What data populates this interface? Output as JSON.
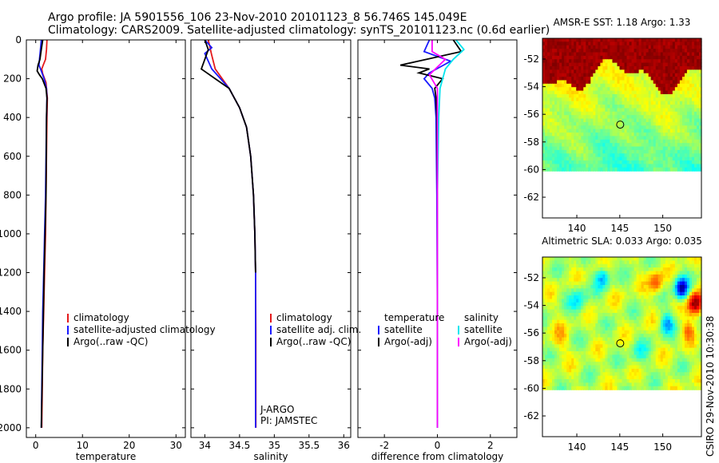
{
  "figure": {
    "title_line1": "Argo profile: JA 5901556_106 23-Nov-2010 20101123_8 56.746S 145.049E",
    "title_line2": "Climatology: CARS2009. Satellite-adjusted climatology: synTS_20101123.nc (0.6d earlier)",
    "timestamp": "CSIRO 29-Nov-2010 10:30:38"
  },
  "colors": {
    "climatology": "#e41a1c",
    "satellite": "#1a1aff",
    "argo": "#000000",
    "sat_salinity": "#00e5ee",
    "argo_salinity": "#ff00ff"
  },
  "chart_data": [
    {
      "id": "temperature",
      "type": "line",
      "xlabel": "temperature",
      "ylabel": "",
      "xlim": [
        -2,
        32
      ],
      "ylim": [
        2050,
        0
      ],
      "xticks": [
        0,
        10,
        20,
        30
      ],
      "yticks": [
        0,
        200,
        400,
        600,
        800,
        1000,
        1200,
        1400,
        1600,
        1800,
        2000
      ],
      "legend": [
        "climatology",
        "satellite-adjusted climatology",
        "Argo(..raw -QC)"
      ],
      "series": [
        {
          "name": "climatology",
          "color": "climatology",
          "x": [
            2.4,
            2.3,
            2.1,
            1.6,
            1.3,
            1.5,
            2.2,
            2.5,
            2.4,
            2.3,
            2.2,
            2.1,
            1.9,
            1.7,
            1.5,
            1.3
          ],
          "y": [
            0,
            50,
            100,
            130,
            150,
            175,
            220,
            300,
            400,
            600,
            800,
            1000,
            1200,
            1400,
            1600,
            2000
          ]
        },
        {
          "name": "satellite-adjusted climatology",
          "color": "satellite",
          "x": [
            1.2,
            1.0,
            0.8,
            0.7,
            1.2,
            1.8,
            2.3,
            2.4,
            2.3,
            2.2,
            2.1,
            1.9,
            1.7,
            1.5,
            1.2
          ],
          "y": [
            0,
            50,
            100,
            130,
            160,
            200,
            250,
            300,
            400,
            600,
            800,
            1000,
            1200,
            1400,
            2000
          ]
        },
        {
          "name": "Argo(..raw -QC)",
          "color": "argo",
          "x": [
            1.5,
            1.2,
            0.9,
            0.5,
            0.3,
            0.8,
            1.4,
            2.2,
            2.4,
            2.3,
            2.2,
            2.0,
            1.8,
            1.5,
            1.2
          ],
          "y": [
            0,
            50,
            100,
            130,
            160,
            180,
            200,
            250,
            300,
            400,
            800,
            1000,
            1200,
            1600,
            2000
          ]
        }
      ]
    },
    {
      "id": "salinity",
      "type": "line",
      "xlabel": "salinity",
      "xlim": [
        33.8,
        36.1
      ],
      "ylim": [
        2050,
        0
      ],
      "xticks": [
        34,
        34.5,
        35,
        35.5,
        36
      ],
      "yticks": [
        0,
        200,
        400,
        600,
        800,
        1000,
        1200,
        1400,
        1600,
        1800,
        2000
      ],
      "legend": [
        "climatology",
        "satellite adj. clim.",
        "Argo(..raw -QC)"
      ],
      "annotations": [
        "J-ARGO",
        "PI: JAMSTEC"
      ],
      "series": [
        {
          "name": "climatology",
          "color": "climatology",
          "x": [
            34.05,
            34.1,
            34.15,
            34.35,
            34.5,
            34.6,
            34.66,
            34.7,
            34.72,
            34.73,
            34.735,
            34.735
          ],
          "y": [
            0,
            80,
            150,
            250,
            350,
            450,
            600,
            800,
            1000,
            1200,
            1500,
            2000
          ]
        },
        {
          "name": "satellite adj. clim.",
          "color": "satellite",
          "x": [
            34.0,
            34.1,
            34.0,
            34.1,
            34.35,
            34.5,
            34.6,
            34.66,
            34.7,
            34.72,
            34.73,
            34.73,
            34.73
          ],
          "y": [
            0,
            40,
            70,
            150,
            250,
            350,
            450,
            600,
            800,
            1000,
            1200,
            1500,
            2000
          ]
        },
        {
          "name": "Argo(..raw -QC)",
          "color": "argo",
          "x": [
            34.0,
            34.05,
            34.0,
            33.95,
            34.15,
            34.35,
            34.5,
            34.6,
            34.66,
            34.7,
            34.72,
            34.73
          ],
          "y": [
            0,
            50,
            100,
            150,
            200,
            250,
            350,
            450,
            600,
            800,
            1000,
            1200
          ]
        }
      ]
    },
    {
      "id": "difference",
      "type": "line",
      "xlabel": "difference from climatology",
      "xlim": [
        -3.0,
        3.0
      ],
      "ylim": [
        2050,
        0
      ],
      "xticks": [
        -2,
        0,
        2
      ],
      "yticks": [
        0,
        200,
        400,
        600,
        800,
        1000,
        1200,
        1400,
        1600,
        1800,
        2000
      ],
      "legend_left_title": "temperature",
      "legend_right_title": "salinity",
      "legend_left": [
        "satellite",
        "Argo(-adj)"
      ],
      "legend_right": [
        "satellite",
        "Argo(-adj)"
      ],
      "series": [
        {
          "name": "temperature satellite",
          "color": "satellite",
          "x": [
            -0.3,
            -0.5,
            0.5,
            0.1,
            -0.3,
            -0.5,
            -0.2,
            -0.1,
            -0.05,
            -0.02,
            0.0,
            0.0
          ],
          "y": [
            0,
            60,
            110,
            140,
            170,
            200,
            250,
            300,
            400,
            800,
            1400,
            2000
          ]
        },
        {
          "name": "temperature Argo(-adj)",
          "color": "argo",
          "x": [
            0.6,
            0.9,
            -0.4,
            -1.4,
            -0.3,
            -0.7,
            0.2,
            -0.1,
            -0.05,
            -0.02,
            0.0,
            0.0
          ],
          "y": [
            0,
            60,
            100,
            130,
            150,
            170,
            200,
            250,
            300,
            400,
            800,
            2000
          ]
        },
        {
          "name": "salinity satellite",
          "color": "sat_salinity",
          "x": [
            0.7,
            1.0,
            0.6,
            0.3,
            0.1,
            0.05,
            0.0,
            0.0
          ],
          "y": [
            0,
            50,
            100,
            150,
            250,
            400,
            800,
            2000
          ]
        },
        {
          "name": "salinity Argo(-adj)",
          "color": "argo_salinity",
          "x": [
            -0.2,
            -0.2,
            0.3,
            -0.3,
            0.0,
            0.0
          ],
          "y": [
            0,
            60,
            100,
            180,
            250,
            2000
          ]
        }
      ]
    },
    {
      "id": "sst_map",
      "type": "heatmap",
      "title": "AMSR-E SST: 1.18 Argo: 1.33",
      "xlim": [
        136,
        154.5
      ],
      "ylim": [
        -63.5,
        -50.5
      ],
      "xticks": [
        140,
        145,
        150
      ],
      "yticks": [
        -52,
        -54,
        -56,
        -58,
        -60,
        -62
      ],
      "data_ylim_bottom": -60.1,
      "marker": {
        "lon": 145.049,
        "lat": -56.746
      },
      "palette": "jet",
      "field": "sst"
    },
    {
      "id": "sla_map",
      "type": "heatmap",
      "title": "Altimetric SLA: 0.033 Argo: 0.035",
      "xlim": [
        136,
        154.5
      ],
      "ylim": [
        -63.5,
        -50.5
      ],
      "xticks": [
        140,
        145,
        150
      ],
      "yticks": [
        -52,
        -54,
        -56,
        -58,
        -60,
        -62
      ],
      "data_ylim_bottom": -60.1,
      "marker": {
        "lon": 145.049,
        "lat": -56.746
      },
      "palette": "jet",
      "field": "sla"
    }
  ]
}
